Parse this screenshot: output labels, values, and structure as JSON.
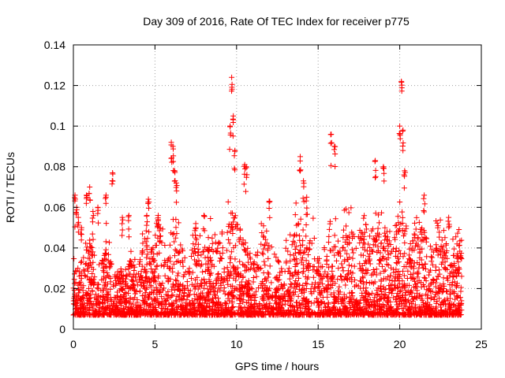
{
  "chart_data": {
    "type": "scatter",
    "title": "Day 309 of 2016, Rate Of TEC Index for receiver p775",
    "xlabel": "GPS time / hours",
    "ylabel": "ROTI / TECUs",
    "xlim": [
      0,
      25
    ],
    "ylim": [
      0,
      0.14
    ],
    "xticks": [
      0,
      5,
      10,
      15,
      20,
      25
    ],
    "xtick_labels": [
      "0",
      "5",
      "10",
      "15",
      "20",
      "25"
    ],
    "yticks": [
      0,
      0.02,
      0.04,
      0.06,
      0.08,
      0.1,
      0.12,
      0.14
    ],
    "ytick_labels": [
      "0",
      "0.02",
      "0.04",
      "0.06",
      "0.08",
      "0.1",
      "0.12",
      "0.14"
    ],
    "grid": true,
    "marker": "+",
    "colors": {
      "series": "#ff0000",
      "grid": "#a0a0a0",
      "axis": "#000000"
    },
    "series": [
      {
        "name": "ROTI",
        "description_points": "dense scatter, mostly 0.005-0.04 TECU across 0-23.8 h",
        "x": [
          0.1,
          0.2,
          0.3,
          0.5,
          0.8,
          1.0,
          1.2,
          1.5,
          2.0,
          2.4,
          3.0,
          3.4,
          4.5,
          4.6,
          5.2,
          6.0,
          6.1,
          6.2,
          6.3,
          7.5,
          8.0,
          9.6,
          9.7,
          9.8,
          9.9,
          10.5,
          10.6,
          12.0,
          13.9,
          14.1,
          14.3,
          15.8,
          16.0,
          18.5,
          19.0,
          20.0,
          20.1,
          20.2,
          20.3,
          21.5,
          23.0
        ],
        "y": [
          0.066,
          0.06,
          0.055,
          0.05,
          0.066,
          0.07,
          0.058,
          0.06,
          0.066,
          0.077,
          0.055,
          0.056,
          0.056,
          0.064,
          0.056,
          0.092,
          0.09,
          0.078,
          0.072,
          0.052,
          0.056,
          0.1,
          0.124,
          0.105,
          0.088,
          0.081,
          0.08,
          0.063,
          0.085,
          0.073,
          0.065,
          0.096,
          0.09,
          0.083,
          0.08,
          0.1,
          0.122,
          0.098,
          0.078,
          0.066,
          0.055
        ]
      }
    ]
  }
}
